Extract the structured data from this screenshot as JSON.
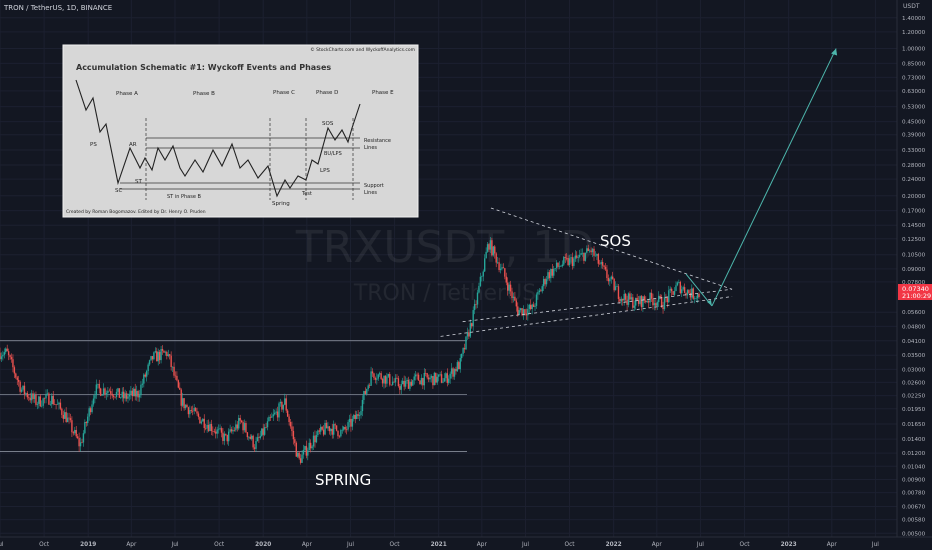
{
  "header": {
    "symbol_label": "TRON / TetherUS, 1D, BINANCE"
  },
  "watermark": {
    "ticker": "TRXUSDT, 1D",
    "name": "TRON / TetherUS"
  },
  "price_axis": {
    "unit": "USDT",
    "ticks": [
      "1.65000",
      "1.40000",
      "1.20000",
      "1.00000",
      "0.85000",
      "0.73000",
      "0.63000",
      "0.53000",
      "0.45000",
      "0.39000",
      "0.33000",
      "0.28000",
      "0.24000",
      "0.20000",
      "0.17000",
      "0.14500",
      "0.12500",
      "0.10500",
      "0.09000",
      "0.07800",
      "0.05600",
      "0.04800",
      "0.04100",
      "0.03500",
      "0.03000",
      "0.02600",
      "0.02250",
      "0.01950",
      "0.01650",
      "0.01400",
      "0.01200",
      "0.01040",
      "0.00900",
      "0.00780",
      "0.00670",
      "0.00580",
      "0.00500"
    ],
    "last_price": "0.07340",
    "countdown": "21:00:29",
    "colors": {
      "last_price_bg": "#f23645",
      "countdown_bg": "#7c2a33"
    }
  },
  "time_axis": {
    "labels": [
      "Jul",
      "Oct",
      "2019",
      "Apr",
      "Jul",
      "Oct",
      "2020",
      "Apr",
      "Jul",
      "Oct",
      "2021",
      "Apr",
      "Jul",
      "Oct",
      "2022",
      "Apr",
      "Jul",
      "Oct",
      "2023",
      "Apr",
      "Jul"
    ]
  },
  "annotations": {
    "sos": "SOS",
    "spring": "SPRING"
  },
  "schematic": {
    "credit_top": "© StockCharts.com and WyckoffAnalytics.com",
    "title": "Accumulation Schematic #1: Wyckoff Events and Phases",
    "phases": [
      "Phase A",
      "Phase B",
      "Phase C",
      "Phase D",
      "Phase E"
    ],
    "events": {
      "ps": "PS",
      "sc": "SC",
      "ar": "AR",
      "st": "ST",
      "st_phase_b": "ST in Phase B",
      "spring": "Spring",
      "test": "Test",
      "sos": "SOS",
      "bu_lps": "BU/LPS",
      "lps": "LPS"
    },
    "line_labels": {
      "resistance_1": "Resistance",
      "resistance_2": "Lines",
      "support_1": "Support",
      "support_2": "Lines"
    },
    "credit_bottom": "Created by Roman Bogomazov. Edited by Dr. Henry O. Pruden"
  },
  "chart_data": {
    "type": "candlestick",
    "title": "TRON / TetherUS, 1D, BINANCE",
    "y_scale": "log",
    "ylim": [
      0.0048,
      1.7
    ],
    "xlim": [
      "2018-07-01",
      "2023-08-15"
    ],
    "series": [
      {
        "name": "TRXUSDT",
        "x": [
          "2018-07",
          "2018-08",
          "2018-09",
          "2018-10",
          "2018-11",
          "2018-12",
          "2019-01",
          "2019-02",
          "2019-03",
          "2019-04",
          "2019-05",
          "2019-06",
          "2019-07",
          "2019-08",
          "2019-09",
          "2019-10",
          "2019-11",
          "2019-12",
          "2020-01",
          "2020-02",
          "2020-03",
          "2020-04",
          "2020-05",
          "2020-06",
          "2020-07",
          "2020-08",
          "2020-09",
          "2020-10",
          "2020-11",
          "2020-12",
          "2021-01",
          "2021-02",
          "2021-03",
          "2021-04",
          "2021-05",
          "2021-06",
          "2021-07",
          "2021-08",
          "2021-09",
          "2021-10",
          "2021-11",
          "2021-12",
          "2022-01",
          "2022-02",
          "2022-03",
          "2022-04",
          "2022-05",
          "2022-06"
        ],
        "close": [
          0.036,
          0.024,
          0.021,
          0.022,
          0.018,
          0.013,
          0.024,
          0.024,
          0.022,
          0.023,
          0.034,
          0.036,
          0.021,
          0.018,
          0.016,
          0.014,
          0.017,
          0.013,
          0.017,
          0.021,
          0.011,
          0.014,
          0.016,
          0.015,
          0.018,
          0.029,
          0.027,
          0.025,
          0.027,
          0.027,
          0.027,
          0.032,
          0.055,
          0.12,
          0.087,
          0.057,
          0.058,
          0.084,
          0.095,
          0.1,
          0.11,
          0.085,
          0.067,
          0.062,
          0.065,
          0.062,
          0.075,
          0.068
        ]
      }
    ],
    "horizontal_levels": [
      0.041,
      0.0228,
      0.0122
    ],
    "projection": {
      "pullback_to": 0.06,
      "target": 1.0
    }
  }
}
